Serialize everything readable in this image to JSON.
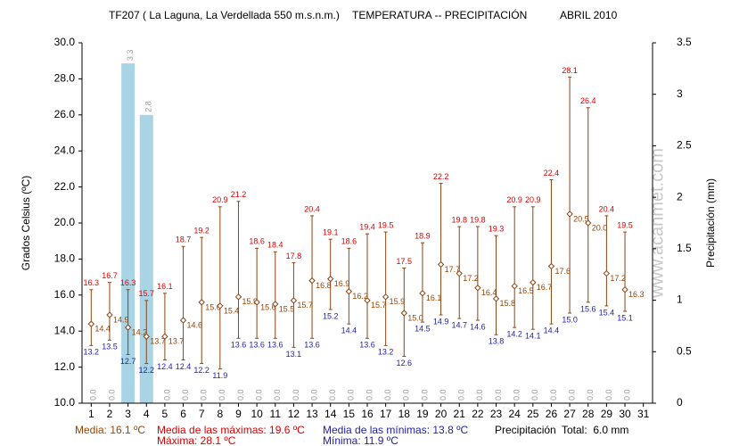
{
  "chart_data": {
    "type": "range",
    "title": "TF207 ( La Laguna, La Verdellada 550 m.s.n.m.)",
    "subtitle": "TEMPERATURA -- PRECIPITACIÓN",
    "period": "ABRIL 2010",
    "ylabel": "Grados Celsius (ºC)",
    "y2label": "Precipitación (mm)",
    "watermark": "www.acanmet.com",
    "categories": [
      1,
      2,
      3,
      4,
      5,
      6,
      7,
      8,
      9,
      10,
      11,
      12,
      13,
      14,
      15,
      16,
      17,
      18,
      19,
      20,
      21,
      22,
      23,
      24,
      25,
      26,
      27,
      28,
      29,
      30,
      31
    ],
    "ylim": [
      10,
      30
    ],
    "yticks": [
      {
        "value": 10,
        "label": "10.0"
      },
      {
        "value": 12,
        "label": "12.0"
      },
      {
        "value": 14,
        "label": "14.0"
      },
      {
        "value": 16,
        "label": "16.0"
      },
      {
        "value": 18,
        "label": "18.0"
      },
      {
        "value": 20,
        "label": "20.0"
      },
      {
        "value": 22,
        "label": "22.0"
      },
      {
        "value": 24,
        "label": "24.0"
      },
      {
        "value": 26,
        "label": "26.0"
      },
      {
        "value": 28,
        "label": "28.0"
      },
      {
        "value": 30,
        "label": "30.0"
      }
    ],
    "y2lim": [
      0,
      3.5
    ],
    "y2ticks": [
      0,
      0.5,
      1,
      1.5,
      2,
      2.5,
      3,
      3.5
    ],
    "series": [
      {
        "color": "#dd0000",
        "values": [
          16.3,
          16.7,
          16.3,
          15.7,
          16.1,
          18.7,
          19.2,
          20.9,
          21.2,
          18.6,
          18.4,
          17.8,
          20.4,
          19.1,
          18.6,
          19.4,
          19.5,
          17.5,
          18.9,
          22.2,
          19.8,
          19.8,
          19.3,
          20.9,
          20.9,
          22.4,
          28.1,
          26.4,
          20.4,
          19.5,
          null
        ]
      },
      {
        "color": "#994400",
        "values": [
          14.4,
          14.9,
          14.2,
          13.7,
          13.7,
          14.6,
          15.6,
          15.4,
          15.9,
          15.6,
          15.5,
          15.7,
          16.8,
          16.9,
          16.2,
          15.7,
          15.9,
          15.0,
          16.1,
          17.7,
          17.2,
          16.4,
          15.8,
          16.5,
          16.7,
          17.6,
          20.5,
          20.0,
          17.2,
          16.3,
          null
        ],
        "value_labels": [
          "14.4",
          "14.9",
          "14.2",
          "13.7",
          "13.7",
          "14.6",
          "15.6",
          "15.4",
          "15.9",
          "15.6",
          "15.5",
          "15.7",
          "16.8",
          "16.9",
          "16.2",
          "15.7",
          "15.9",
          "15.0",
          "16.1",
          "17.7",
          "17.2",
          "16.4",
          "15.8",
          "16.5",
          "16.7",
          "17.6",
          "20.5",
          "20.0",
          "17.2",
          "16.3",
          null
        ]
      },
      {
        "color": "#2222aa",
        "values": [
          13.2,
          13.5,
          12.7,
          12.2,
          12.4,
          12.4,
          12.2,
          11.9,
          13.6,
          13.6,
          13.6,
          13.1,
          13.6,
          15.2,
          14.4,
          13.6,
          13.2,
          12.6,
          14.5,
          14.9,
          14.7,
          14.6,
          13.8,
          14.2,
          14.1,
          14.4,
          15.0,
          15.6,
          15.4,
          15.1,
          null
        ],
        "value_labels": [
          "13.2",
          "13.5",
          "12.7",
          "12.2",
          "12.4",
          "12.4",
          "12.2",
          "11.9",
          "13.6",
          "13.6",
          "13.6",
          "13.1",
          "13.6",
          "15.2",
          "14.4",
          "13.6",
          "13.2",
          "12.6",
          "14.5",
          "14.9",
          "14.7",
          "14.6",
          "13.8",
          "14.2",
          "14.1",
          "14.4",
          "15.0",
          "15.6",
          "15.4",
          "15.1",
          null
        ]
      },
      {
        "color": "#a8d4e6",
        "axis": "y2",
        "values": [
          0,
          0,
          3.3,
          2.8,
          0,
          0,
          0,
          0,
          0,
          0,
          0,
          0,
          0,
          0,
          0,
          0,
          0,
          0,
          0,
          0,
          0,
          0,
          0,
          0,
          0,
          0,
          0,
          0,
          0,
          0,
          null
        ],
        "value_labels": [
          "0.0",
          "0.0",
          "3.3",
          "2.8",
          "0.0",
          "0.0",
          "0.0",
          "0.0",
          "0.0",
          "0.0",
          "0.0",
          "0.0",
          "0.0",
          "0.0",
          "0.0",
          "0.0",
          "0.0",
          "0.0",
          "0.0",
          "0.0",
          "0.0",
          "0.0",
          "0.0",
          "0.0",
          "0.0",
          "0.0",
          "0.0",
          "0.0",
          "0.0",
          "0.0",
          null
        ]
      }
    ],
    "footer": {
      "mean": "Media: 16.1 ºC",
      "mean_max": "Media de las máximas: 19.6 ºC",
      "mean_min": "Media de las mínimas: 13.8 ºC",
      "precip": "Precipitación",
      "total": "Total:  6.0 mm",
      "max": "Máxima: 28.1 ºC",
      "min": "Mínima: 11.9 ºC"
    }
  }
}
